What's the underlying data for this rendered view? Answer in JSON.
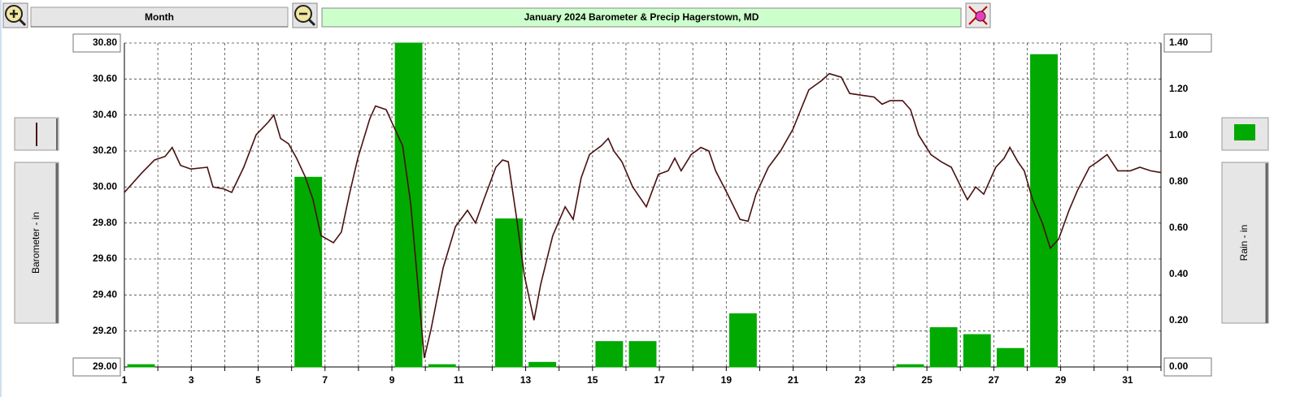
{
  "toolbar": {
    "period": "Month"
  },
  "chart_data": {
    "type": "combo",
    "title": "January 2024  Barometer & Precip    Hagerstown, MD",
    "ylabel": "Barometer - in",
    "y2label": "Rain - in",
    "xlim": [
      1,
      32
    ],
    "xticks": [
      1,
      3,
      5,
      7,
      9,
      11,
      13,
      15,
      17,
      19,
      21,
      23,
      25,
      27,
      29,
      31
    ],
    "xminorticks": [
      2,
      4,
      6,
      8,
      10,
      12,
      14,
      16,
      18,
      20,
      22,
      24,
      26,
      28,
      30,
      32
    ],
    "ylim": [
      29.0,
      30.8
    ],
    "yticks": [
      {
        "value": 29.0,
        "label": "29.00"
      },
      {
        "value": 29.2,
        "label": "29.20"
      },
      {
        "value": 29.4,
        "label": "29.40"
      },
      {
        "value": 29.6,
        "label": "29.60"
      },
      {
        "value": 29.8,
        "label": "29.80"
      },
      {
        "value": 30.0,
        "label": "30.00"
      },
      {
        "value": 30.2,
        "label": "30.20"
      },
      {
        "value": 30.4,
        "label": "30.40"
      },
      {
        "value": 30.6,
        "label": "30.60"
      },
      {
        "value": 30.8,
        "label": "30.80"
      }
    ],
    "y2lim": [
      0,
      1.4
    ],
    "y2ticks": [
      {
        "value": 0,
        "label": "0.00"
      },
      {
        "value": 0.2,
        "label": "0.20"
      },
      {
        "value": 0.4,
        "label": "0.40"
      },
      {
        "value": 0.6,
        "label": "0.60"
      },
      {
        "value": 0.8,
        "label": "0.80"
      },
      {
        "value": 1.0,
        "label": "1.00"
      },
      {
        "value": 1.2,
        "label": "1.20"
      },
      {
        "value": 1.4,
        "label": "1.40"
      }
    ],
    "grid": true,
    "series": [
      {
        "type": "bar",
        "axis": "y2",
        "color": "#00aa00",
        "x": [
          1,
          2,
          3,
          4,
          5,
          6,
          7,
          8,
          9,
          10,
          11,
          12,
          13,
          14,
          15,
          16,
          17,
          18,
          19,
          20,
          21,
          22,
          23,
          24,
          25,
          26,
          27,
          28,
          29,
          30,
          31
        ],
        "values": [
          0.01,
          0,
          0,
          0,
          0,
          0.82,
          0,
          0,
          1.4,
          0.01,
          0,
          0.64,
          0.02,
          0,
          0.11,
          0.11,
          0,
          0,
          0.23,
          0,
          0,
          0,
          0,
          0.01,
          0.17,
          0.14,
          0.08,
          1.35,
          0,
          0,
          0
        ]
      },
      {
        "type": "line",
        "color": "#4a1010",
        "x": [
          1.0,
          1.53,
          1.9,
          2.22,
          2.43,
          2.68,
          2.99,
          3.48,
          3.65,
          3.97,
          4.21,
          4.57,
          4.94,
          5.3,
          5.47,
          5.67,
          5.91,
          6.15,
          6.4,
          6.64,
          6.88,
          7.25,
          7.49,
          7.73,
          7.98,
          8.34,
          8.51,
          8.83,
          9.07,
          9.32,
          9.56,
          9.8,
          9.97,
          10.17,
          10.53,
          10.9,
          11.26,
          11.5,
          11.75,
          12.11,
          12.31,
          12.48,
          12.72,
          12.96,
          13.25,
          13.45,
          13.81,
          14.18,
          14.42,
          14.66,
          14.91,
          15.27,
          15.47,
          15.64,
          15.88,
          16.2,
          16.61,
          16.97,
          17.26,
          17.46,
          17.65,
          17.95,
          18.24,
          18.48,
          18.68,
          19.04,
          19.41,
          19.65,
          19.89,
          20.26,
          20.62,
          20.99,
          21.23,
          21.47,
          21.84,
          22.08,
          22.44,
          22.69,
          23.05,
          23.42,
          23.66,
          23.9,
          24.27,
          24.51,
          24.75,
          25.12,
          25.43,
          25.73,
          26.02,
          26.21,
          26.46,
          26.7,
          27.06,
          27.31,
          27.48,
          27.72,
          27.91,
          28.16,
          28.45,
          28.69,
          28.94,
          29.25,
          29.5,
          29.86,
          30.1,
          30.39,
          30.71,
          31.08,
          31.37,
          31.69,
          32.0
        ],
        "values": [
          29.97,
          30.08,
          30.15,
          30.17,
          30.22,
          30.12,
          30.1,
          30.11,
          30.0,
          29.99,
          29.97,
          30.11,
          30.29,
          30.36,
          30.4,
          30.27,
          30.24,
          30.16,
          30.06,
          29.93,
          29.73,
          29.69,
          29.75,
          29.96,
          30.16,
          30.38,
          30.45,
          30.43,
          30.33,
          30.23,
          29.91,
          29.41,
          29.05,
          29.21,
          29.55,
          29.78,
          29.87,
          29.8,
          29.93,
          30.11,
          30.15,
          30.14,
          29.84,
          29.51,
          29.26,
          29.46,
          29.73,
          29.89,
          29.82,
          30.05,
          30.18,
          30.23,
          30.27,
          30.2,
          30.14,
          30.0,
          29.89,
          30.07,
          30.09,
          30.16,
          30.09,
          30.18,
          30.22,
          30.2,
          30.09,
          29.96,
          29.82,
          29.81,
          29.96,
          30.11,
          30.2,
          30.32,
          30.43,
          30.54,
          30.59,
          30.63,
          30.61,
          30.52,
          30.51,
          30.5,
          30.46,
          30.48,
          30.48,
          30.43,
          30.29,
          30.18,
          30.14,
          30.11,
          30.0,
          29.93,
          30.0,
          29.96,
          30.11,
          30.16,
          30.22,
          30.14,
          30.09,
          29.93,
          29.8,
          29.66,
          29.71,
          29.87,
          29.98,
          30.11,
          30.14,
          30.18,
          30.09,
          30.09,
          30.11,
          30.09,
          30.08
        ]
      }
    ]
  }
}
